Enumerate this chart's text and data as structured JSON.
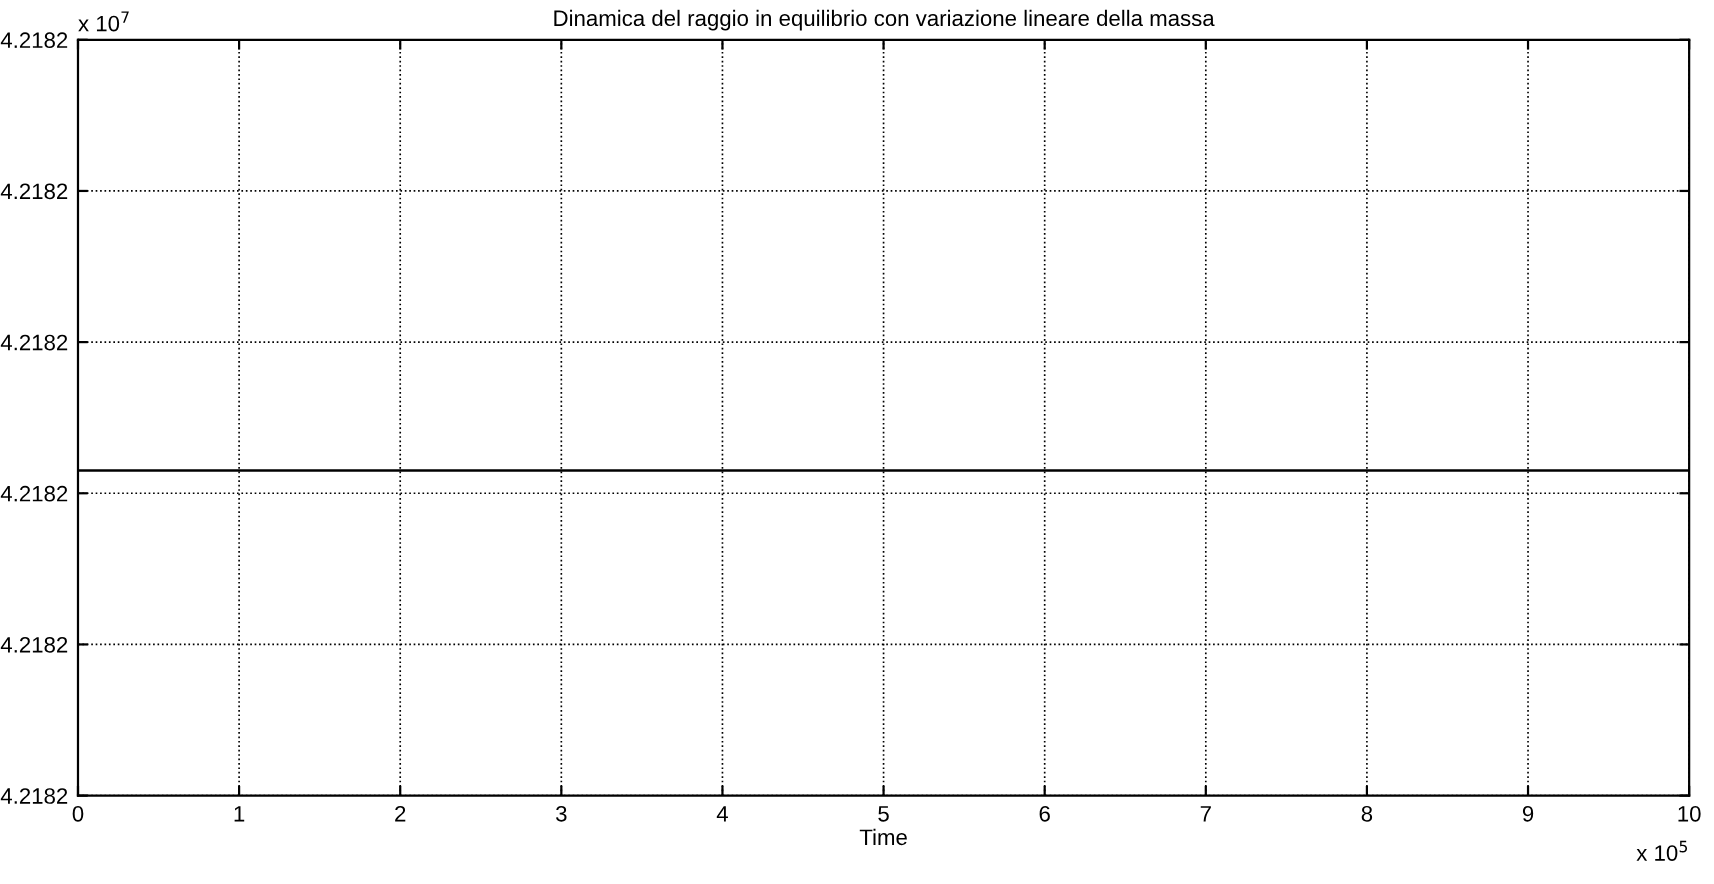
{
  "chart_data": {
    "type": "line",
    "title": "Dinamica del raggio in equilibrio con variazione lineare della massa",
    "xlabel": "Time",
    "x": [
      0,
      10
    ],
    "series": [
      {
        "color": "#000000",
        "values": [
          4.2181815,
          4.2181815
        ]
      }
    ],
    "xlim": [
      0,
      10
    ],
    "xticks": [
      0,
      1,
      2,
      3,
      4,
      5,
      6,
      7,
      8,
      9,
      10
    ],
    "ylim": [
      4.21816,
      4.21821
    ],
    "yticks": [
      {
        "value": 4.21816,
        "label": "4.2182"
      },
      {
        "value": 4.21817,
        "label": "4.2182"
      },
      {
        "value": 4.21818,
        "label": "4.2182"
      },
      {
        "value": 4.21819,
        "label": "4.2182"
      },
      {
        "value": 4.2182,
        "label": "4.2182"
      },
      {
        "value": 4.21821,
        "label": "4.2182"
      }
    ],
    "annotations": [
      "x 10$^{7}$",
      "x 10$^{5}$"
    ],
    "grid": true,
    "line_style": "solid"
  }
}
